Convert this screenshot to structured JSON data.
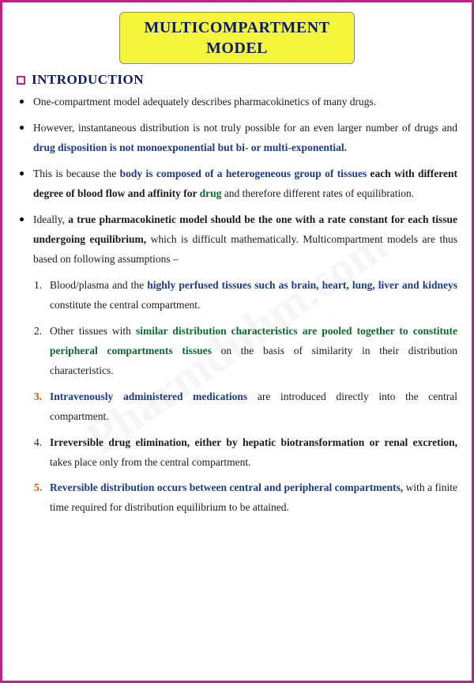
{
  "title": {
    "line1": "MULTICOMPARTMENT",
    "line2": "MODEL"
  },
  "section_header": "INTRODUCTION",
  "watermark": "Pharmduhm.com",
  "bullets": [
    {
      "spans": [
        {
          "t": "One-compartment model adequately describes pharmacokinetics of many drugs.",
          "cls": ""
        }
      ]
    },
    {
      "spans": [
        {
          "t": "However, instantaneous distribution is not truly possible for an even larger number of drugs and ",
          "cls": ""
        },
        {
          "t": "drug disposition is not monoexponential but bi- or multi-exponential.",
          "cls": "navy"
        }
      ]
    },
    {
      "spans": [
        {
          "t": "This is because the ",
          "cls": ""
        },
        {
          "t": "body is composed of a heterogeneous group of tissues ",
          "cls": "navy"
        },
        {
          "t": "each with different degree of blood flow and affinity for ",
          "cls": "b"
        },
        {
          "t": "drug ",
          "cls": "green"
        },
        {
          "t": "and therefore different rates of equilibration.",
          "cls": ""
        }
      ]
    },
    {
      "spans": [
        {
          "t": "Ideally, ",
          "cls": ""
        },
        {
          "t": "a true pharmacokinetic model should be the one with a rate constant for each tissue undergoing equilibrium, ",
          "cls": "b"
        },
        {
          "t": "which is difficult mathematically. Multicompartment models are thus based on following assumptions –",
          "cls": ""
        }
      ]
    }
  ],
  "numbered": [
    {
      "num": "1.",
      "num_cls": "",
      "spans": [
        {
          "t": "Blood/plasma and the ",
          "cls": ""
        },
        {
          "t": "highly perfused tissues such as brain, heart, lung, liver and kidneys ",
          "cls": "navy"
        },
        {
          "t": "constitute the central compartment.",
          "cls": ""
        }
      ]
    },
    {
      "num": "2.",
      "num_cls": "",
      "spans": [
        {
          "t": "Other tissues with ",
          "cls": ""
        },
        {
          "t": "similar distribution characteristics are pooled together to constitute peripheral compartments tissues ",
          "cls": "green"
        },
        {
          "t": "on the basis of similarity in their distribution characteristics.",
          "cls": ""
        }
      ]
    },
    {
      "num": "3.",
      "num_cls": "orange",
      "spans": [
        {
          "t": "Intravenously administered medications ",
          "cls": "navy"
        },
        {
          "t": "are introduced directly into the central compartment.",
          "cls": ""
        }
      ]
    },
    {
      "num": "4.",
      "num_cls": "",
      "spans": [
        {
          "t": "Irreversible drug elimination, either by hepatic biotransformation or renal excretion, ",
          "cls": "b"
        },
        {
          "t": "takes place only from the central compartment.",
          "cls": ""
        }
      ]
    },
    {
      "num": "5.",
      "num_cls": "orange",
      "spans": [
        {
          "t": "Reversible distribution occurs between central and peripheral compartments, ",
          "cls": "navy"
        },
        {
          "t": "with a finite time required for distribution equilibrium to be attained.",
          "cls": ""
        }
      ]
    }
  ]
}
